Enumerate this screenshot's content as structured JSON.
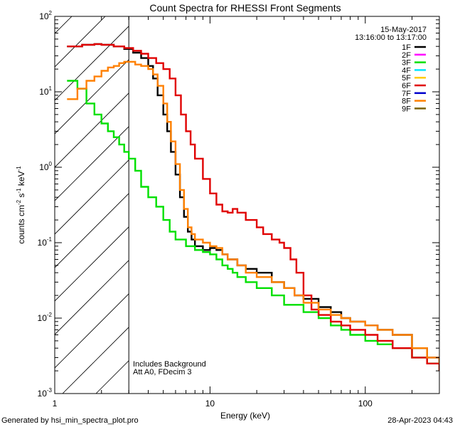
{
  "chart_data": {
    "type": "line",
    "title": "Count Spectra for RHESSI Front Segments",
    "xlabel": "Energy (keV)",
    "ylabel": "counts cm",
    "ylabel_sup1": "-2",
    "ylabel_mid": " s",
    "ylabel_sup2": "-1",
    "ylabel_mid2": " keV",
    "ylabel_sup3": "-1",
    "x_scale": "log",
    "y_scale": "log",
    "xlim": [
      1,
      300
    ],
    "ylim": [
      0.001,
      100
    ],
    "x_ticks": [
      {
        "value": 1,
        "label": "1"
      },
      {
        "value": 10,
        "label": "10"
      },
      {
        "value": 100,
        "label": "100"
      }
    ],
    "y_ticks": [
      {
        "value": 100,
        "base": "10",
        "exp": "2"
      },
      {
        "value": 10,
        "base": "10",
        "exp": "1"
      },
      {
        "value": 1,
        "base": "10",
        "exp": "0"
      },
      {
        "value": 0.1,
        "base": "10",
        "exp": "-1"
      },
      {
        "value": 0.01,
        "base": "10",
        "exp": "-2"
      },
      {
        "value": 0.001,
        "base": "10",
        "exp": "-3"
      }
    ],
    "date": "15-May-2017",
    "time_range": "13:16:00 to 13:17:00",
    "annotation_lines": [
      "Includes Background",
      "Att A0, FDecim 3"
    ],
    "footer_left": "Generated by hsi_min_spectra_plot.pro",
    "footer_right": "28-Apr-2023 04:43",
    "shaded_region": {
      "x_min": 1,
      "x_max": 3,
      "pattern": "diagonal-hatch"
    },
    "legend_position": "top-right",
    "series": [
      {
        "name": "1F",
        "color": "#000000",
        "x": [
          1.2,
          1.5,
          1.8,
          2.0,
          2.4,
          2.8,
          3.2,
          3.6,
          4.0,
          4.3,
          4.6,
          5.0,
          5.3,
          5.6,
          6.0,
          6.4,
          6.8,
          7.2,
          7.6,
          8.0,
          9.0,
          10,
          11,
          12,
          13,
          15,
          17,
          20,
          25,
          30,
          35,
          40,
          50,
          60,
          70,
          80,
          100,
          120,
          150,
          200,
          250,
          300
        ],
        "y": [
          40,
          42,
          43,
          42,
          40,
          37,
          33,
          28,
          22,
          15,
          9,
          5,
          3,
          1.6,
          0.8,
          0.4,
          0.22,
          0.14,
          0.11,
          0.09,
          0.08,
          0.085,
          0.08,
          0.07,
          0.06,
          0.05,
          0.045,
          0.04,
          0.03,
          0.025,
          0.02,
          0.018,
          0.014,
          0.012,
          0.01,
          0.009,
          0.008,
          0.007,
          0.006,
          0.004,
          0.003,
          0.0025
        ]
      },
      {
        "name": "2F",
        "color": "#ff00ff",
        "x": [],
        "y": []
      },
      {
        "name": "3F",
        "color": "#00e000",
        "x": [
          1.2,
          1.4,
          1.6,
          1.8,
          2.0,
          2.2,
          2.4,
          2.6,
          2.8,
          3.0,
          3.3,
          3.6,
          4.0,
          4.5,
          5.0,
          5.5,
          6.0,
          7.0,
          8.0,
          9.0,
          10,
          11,
          12,
          13,
          14,
          15,
          17,
          20,
          25,
          30,
          40,
          50,
          60,
          70,
          80,
          100,
          120,
          150,
          200,
          250,
          300
        ],
        "y": [
          14,
          11,
          7,
          5,
          3.8,
          3.0,
          2.5,
          2.0,
          1.6,
          1.3,
          0.9,
          0.55,
          0.4,
          0.3,
          0.2,
          0.14,
          0.11,
          0.09,
          0.08,
          0.075,
          0.07,
          0.06,
          0.05,
          0.045,
          0.04,
          0.035,
          0.03,
          0.025,
          0.02,
          0.015,
          0.012,
          0.01,
          0.008,
          0.007,
          0.006,
          0.005,
          0.0045,
          0.004,
          0.003,
          0.0025,
          0.002
        ]
      },
      {
        "name": "4F",
        "color": "#00e5ff",
        "x": [],
        "y": []
      },
      {
        "name": "5F",
        "color": "#ffcc00",
        "x": [],
        "y": []
      },
      {
        "name": "6F",
        "color": "#e00000",
        "x": [
          1.2,
          1.5,
          1.8,
          2.0,
          2.4,
          2.8,
          3.2,
          3.6,
          4.0,
          4.5,
          5.0,
          5.5,
          6.0,
          6.5,
          7.0,
          7.5,
          8.0,
          9.0,
          10,
          11,
          12,
          13,
          14,
          15,
          17,
          20,
          22,
          25,
          28,
          30,
          33,
          36,
          40,
          45,
          50,
          60,
          70,
          80,
          100,
          120,
          150,
          200,
          250,
          300
        ],
        "y": [
          40,
          42,
          43,
          42,
          40,
          38,
          35,
          32,
          28,
          24,
          20,
          15,
          9,
          5,
          3,
          2,
          1.3,
          0.7,
          0.45,
          0.32,
          0.26,
          0.25,
          0.28,
          0.25,
          0.2,
          0.16,
          0.13,
          0.11,
          0.1,
          0.085,
          0.06,
          0.04,
          0.02,
          0.013,
          0.011,
          0.009,
          0.008,
          0.007,
          0.006,
          0.005,
          0.004,
          0.003,
          0.0025,
          0.002
        ]
      },
      {
        "name": "7F",
        "color": "#0000cc",
        "x": [],
        "y": []
      },
      {
        "name": "8F",
        "color": "#ff8000",
        "x": [
          1.2,
          1.4,
          1.6,
          1.8,
          2.0,
          2.2,
          2.4,
          2.6,
          2.8,
          3.0,
          3.3,
          3.6,
          4.0,
          4.3,
          4.6,
          5.0,
          5.3,
          5.6,
          6.0,
          6.4,
          6.8,
          7.2,
          7.6,
          8.0,
          9.0,
          10,
          11,
          12,
          13,
          15,
          17,
          20,
          25,
          30,
          35,
          40,
          50,
          60,
          70,
          80,
          100,
          120,
          150,
          200,
          250,
          300
        ],
        "y": [
          8,
          11,
          14,
          16,
          19,
          21,
          22,
          24,
          25,
          25,
          23,
          22,
          20,
          17,
          12,
          7,
          4,
          2.2,
          1.1,
          0.5,
          0.28,
          0.16,
          0.13,
          0.11,
          0.1,
          0.09,
          0.085,
          0.07,
          0.06,
          0.05,
          0.04,
          0.035,
          0.03,
          0.025,
          0.02,
          0.016,
          0.013,
          0.011,
          0.01,
          0.009,
          0.008,
          0.007,
          0.006,
          0.004,
          0.003,
          0.0025
        ]
      },
      {
        "name": "9F",
        "color": "#7a6200",
        "x": [],
        "y": []
      }
    ]
  }
}
